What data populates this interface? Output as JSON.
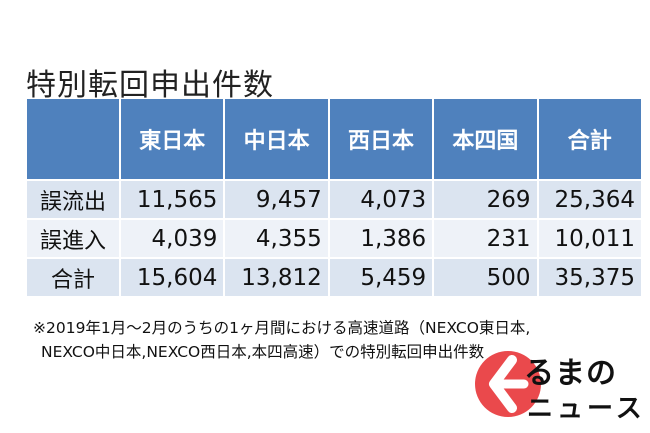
{
  "title": "特別転回申出件数",
  "colors": {
    "header": "#4f81bd",
    "cell_row1": "#dbe4f0",
    "cell_row2": "#eef2f8",
    "cell_row3": "#dbe4f0",
    "logo_red": "#e8393d"
  },
  "table": {
    "columns": [
      "",
      "東日本",
      "中日本",
      "西日本",
      "本四国",
      "合計"
    ],
    "rows": [
      {
        "label": "誤流出",
        "values": [
          "11,565",
          "9,457",
          "4,073",
          "269",
          "25,364"
        ]
      },
      {
        "label": "誤進入",
        "values": [
          "4,039",
          "4,355",
          "1,386",
          "231",
          "10,011"
        ]
      },
      {
        "label": "合計",
        "values": [
          "15,604",
          "13,812",
          "5,459",
          "500",
          "35,375"
        ]
      }
    ]
  },
  "note": {
    "line1": "※2019年1月～2月のうちの1ヶ月間における高速道路（NEXCO東日本,",
    "line2": "NEXCO中日本,NEXCO西日本,本四高速）での特別転回申出件数"
  },
  "logo": {
    "icon": "kuruma-k-logo-icon",
    "brand": "るまの",
    "sub": "ニュース"
  }
}
